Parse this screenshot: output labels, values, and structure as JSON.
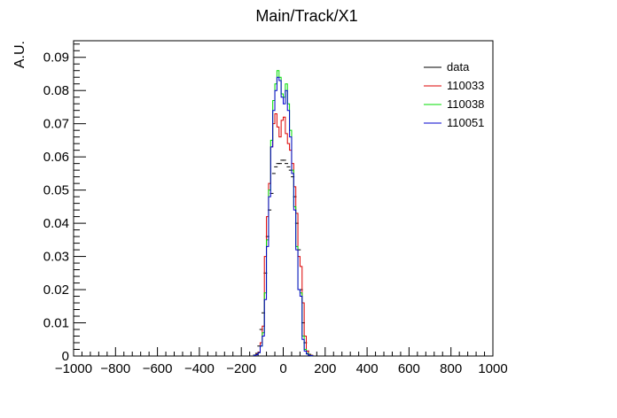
{
  "chart_data": {
    "type": "histogram",
    "title": "Main/Track/X1",
    "xlabel": "",
    "ylabel": "A.U.",
    "xlim": [
      -1000,
      1000
    ],
    "ylim": [
      0,
      0.095
    ],
    "x_ticks": [
      -1000,
      -800,
      -600,
      -400,
      -200,
      0,
      200,
      400,
      600,
      800,
      1000
    ],
    "x_tick_labels": [
      "−1000",
      "−800",
      "−600",
      "−400",
      "−200",
      "0",
      "200",
      "400",
      "600",
      "800",
      "1000"
    ],
    "y_ticks": [
      0,
      0.01,
      0.02,
      0.03,
      0.04,
      0.05,
      0.06,
      0.07,
      0.08,
      0.09
    ],
    "y_tick_labels": [
      "0",
      "0.01",
      "0.02",
      "0.03",
      "0.04",
      "0.05",
      "0.06",
      "0.07",
      "0.08",
      "0.09"
    ],
    "grid": false,
    "legend_position": "top-right",
    "bin_edges": [
      -140,
      -130,
      -120,
      -110,
      -100,
      -90,
      -80,
      -70,
      -60,
      -50,
      -40,
      -30,
      -20,
      -10,
      0,
      10,
      20,
      30,
      40,
      50,
      60,
      70,
      80,
      90,
      100,
      110,
      120,
      130,
      140
    ],
    "series": [
      {
        "name": "data",
        "color": "#000000",
        "style": "markers",
        "values": [
          0.0003,
          0.0008,
          0.003,
          0.008,
          0.013,
          0.025,
          0.036,
          0.044,
          0.049,
          0.055,
          0.057,
          0.058,
          0.058,
          0.059,
          0.059,
          0.058,
          0.057,
          0.056,
          0.054,
          0.048,
          0.04,
          0.032,
          0.02,
          0.01,
          0.004,
          0.0015,
          0.0005,
          0.0002
        ]
      },
      {
        "name": "110033",
        "color": "#dd0000",
        "style": "step",
        "values": [
          0.0002,
          0.0005,
          0.0012,
          0.004,
          0.009,
          0.03,
          0.042,
          0.052,
          0.063,
          0.07,
          0.073,
          0.069,
          0.066,
          0.071,
          0.072,
          0.067,
          0.064,
          0.062,
          0.058,
          0.051,
          0.043,
          0.03,
          0.027,
          0.016,
          0.006,
          0.0015,
          0.0004,
          0.0002
        ]
      },
      {
        "name": "110038",
        "color": "#00dd00",
        "style": "step",
        "values": [
          0.0002,
          0.0004,
          0.001,
          0.003,
          0.007,
          0.019,
          0.035,
          0.05,
          0.065,
          0.077,
          0.082,
          0.086,
          0.084,
          0.079,
          0.078,
          0.082,
          0.076,
          0.068,
          0.056,
          0.045,
          0.033,
          0.02,
          0.019,
          0.006,
          0.002,
          0.0008,
          0.0003,
          0.0001
        ]
      },
      {
        "name": "110051",
        "color": "#0000cc",
        "style": "step",
        "values": [
          0.0002,
          0.0004,
          0.001,
          0.003,
          0.006,
          0.017,
          0.033,
          0.048,
          0.063,
          0.074,
          0.08,
          0.084,
          0.083,
          0.078,
          0.076,
          0.08,
          0.074,
          0.066,
          0.055,
          0.044,
          0.032,
          0.02,
          0.018,
          0.005,
          0.0015,
          0.0006,
          0.0002,
          0.0001
        ]
      }
    ]
  }
}
